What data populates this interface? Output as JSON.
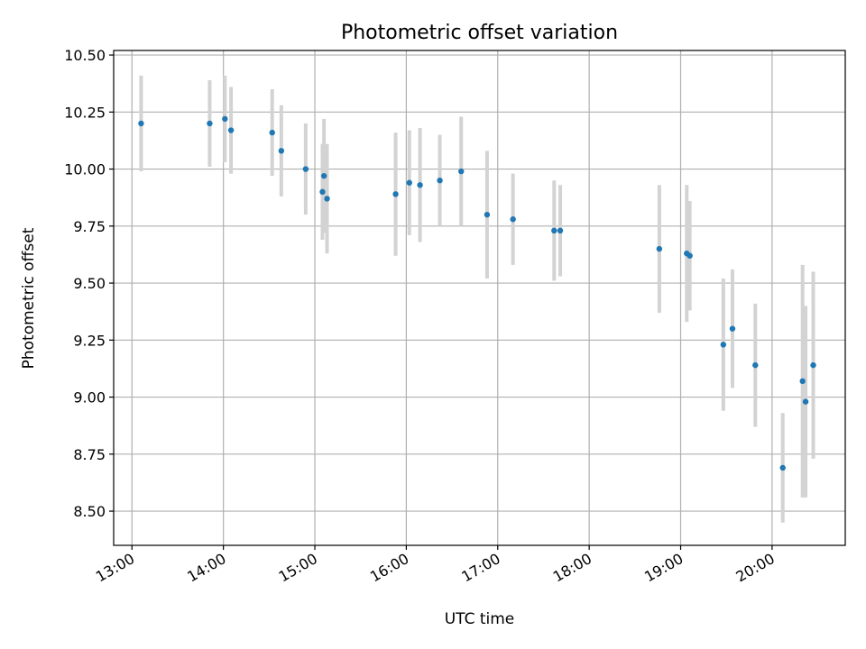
{
  "chart_data": {
    "type": "scatter",
    "title": "Photometric offset variation",
    "xlabel": "UTC time",
    "ylabel": "Photometric offset",
    "xlim": [
      "12:48",
      "20:48"
    ],
    "ylim": [
      8.35,
      10.52
    ],
    "x_ticks": [
      "13:00",
      "14:00",
      "15:00",
      "16:00",
      "17:00",
      "18:00",
      "19:00",
      "20:00"
    ],
    "y_ticks": [
      "8.50",
      "8.75",
      "9.00",
      "9.25",
      "9.50",
      "9.75",
      "10.00",
      "10.25",
      "10.50"
    ],
    "grid": true,
    "series": [
      {
        "marker_color": "#1f77b4",
        "errorbar_color": "#d3d3d3",
        "points": [
          {
            "time": "13:06",
            "y": 10.2,
            "err": 0.21
          },
          {
            "time": "13:51",
            "y": 10.2,
            "err": 0.19
          },
          {
            "time": "14:01",
            "y": 10.22,
            "err": 0.19
          },
          {
            "time": "14:05",
            "y": 10.17,
            "err": 0.19
          },
          {
            "time": "14:32",
            "y": 10.16,
            "err": 0.19
          },
          {
            "time": "14:38",
            "y": 10.08,
            "err": 0.2
          },
          {
            "time": "14:54",
            "y": 10.0,
            "err": 0.2
          },
          {
            "time": "15:05",
            "y": 9.9,
            "err": 0.21
          },
          {
            "time": "15:06",
            "y": 9.97,
            "err": 0.25
          },
          {
            "time": "15:08",
            "y": 9.87,
            "err": 0.24
          },
          {
            "time": "15:53",
            "y": 9.89,
            "err": 0.27
          },
          {
            "time": "16:02",
            "y": 9.94,
            "err": 0.23
          },
          {
            "time": "16:09",
            "y": 9.93,
            "err": 0.25
          },
          {
            "time": "16:22",
            "y": 9.95,
            "err": 0.2
          },
          {
            "time": "16:36",
            "y": 9.99,
            "err": 0.24
          },
          {
            "time": "16:53",
            "y": 9.8,
            "err": 0.28
          },
          {
            "time": "17:10",
            "y": 9.78,
            "err": 0.2
          },
          {
            "time": "17:37",
            "y": 9.73,
            "err": 0.22
          },
          {
            "time": "17:41",
            "y": 9.73,
            "err": 0.2
          },
          {
            "time": "18:46",
            "y": 9.65,
            "err": 0.28
          },
          {
            "time": "19:04",
            "y": 9.63,
            "err": 0.3
          },
          {
            "time": "19:06",
            "y": 9.62,
            "err": 0.24
          },
          {
            "time": "19:28",
            "y": 9.23,
            "err": 0.29
          },
          {
            "time": "19:34",
            "y": 9.3,
            "err": 0.26
          },
          {
            "time": "19:49",
            "y": 9.14,
            "err": 0.27
          },
          {
            "time": "20:07",
            "y": 8.69,
            "err": 0.24
          },
          {
            "time": "20:20",
            "y": 9.07,
            "err": 0.51
          },
          {
            "time": "20:22",
            "y": 8.98,
            "err": 0.42
          },
          {
            "time": "20:27",
            "y": 9.14,
            "err": 0.41
          }
        ]
      }
    ]
  }
}
